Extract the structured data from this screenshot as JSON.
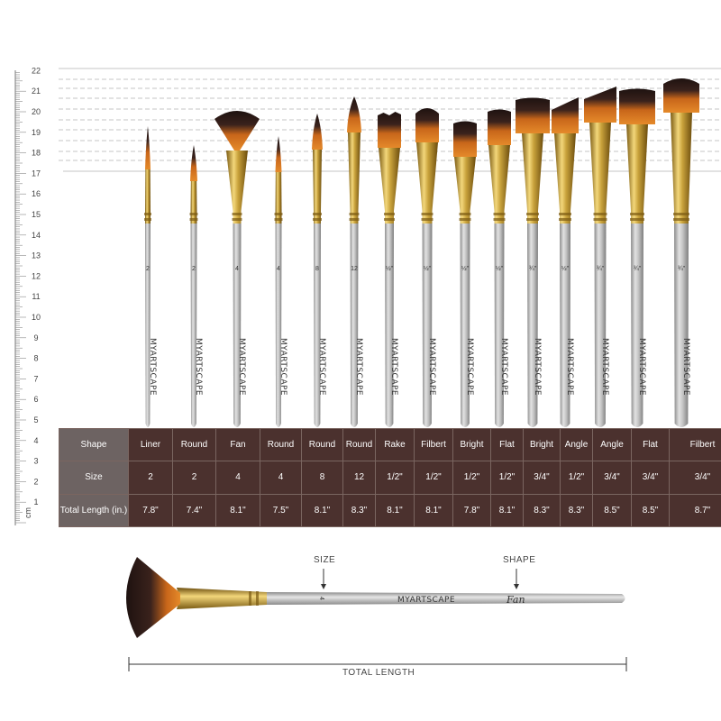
{
  "ruler": {
    "unit": "cm",
    "labels": [
      "1",
      "2",
      "3",
      "4",
      "5",
      "6",
      "7",
      "8",
      "9",
      "10",
      "11",
      "12",
      "13",
      "14",
      "15",
      "16",
      "17",
      "18",
      "19",
      "20",
      "21",
      "22"
    ]
  },
  "brushes": [
    {
      "shape": "Liner",
      "size": "2",
      "size_mark": "2",
      "length": "7.8\"",
      "head": "liner"
    },
    {
      "shape": "Round",
      "size": "2",
      "size_mark": "2",
      "length": "7.4\"",
      "head": "round"
    },
    {
      "shape": "Fan",
      "size": "4",
      "size_mark": "4",
      "length": "8.1\"",
      "head": "fan"
    },
    {
      "shape": "Round",
      "size": "4",
      "size_mark": "4",
      "length": "7.5\"",
      "head": "round"
    },
    {
      "shape": "Round",
      "size": "8",
      "size_mark": "8",
      "length": "8.1\"",
      "head": "round"
    },
    {
      "shape": "Round",
      "size": "12",
      "size_mark": "12",
      "length": "8.3\"",
      "head": "round"
    },
    {
      "shape": "Rake",
      "size": "1/2\"",
      "size_mark": "½\"",
      "length": "8.1\"",
      "head": "rake"
    },
    {
      "shape": "Filbert",
      "size": "1/2\"",
      "size_mark": "½\"",
      "length": "8.1\"",
      "head": "filbert"
    },
    {
      "shape": "Bright",
      "size": "1/2\"",
      "size_mark": "½\"",
      "length": "7.8\"",
      "head": "bright"
    },
    {
      "shape": "Flat",
      "size": "1/2\"",
      "size_mark": "½\"",
      "length": "8.1\"",
      "head": "flat"
    },
    {
      "shape": "Bright",
      "size": "3/4\"",
      "size_mark": "¾\"",
      "length": "8.3\"",
      "head": "bright"
    },
    {
      "shape": "Angle",
      "size": "1/2\"",
      "size_mark": "½\"",
      "length": "8.3\"",
      "head": "angle"
    },
    {
      "shape": "Angle",
      "size": "3/4\"",
      "size_mark": "¾\"",
      "length": "8.5\"",
      "head": "angle"
    },
    {
      "shape": "Flat",
      "size": "3/4\"",
      "size_mark": "¾\"",
      "length": "8.5\"",
      "head": "flat"
    },
    {
      "shape": "Filbert",
      "size": "3/4\"",
      "size_mark": "¾\"",
      "length": "8.7\"",
      "head": "filbert"
    }
  ],
  "brand": "MYARTSCAPE",
  "table": {
    "row_shape": "Shape",
    "row_size": "Size",
    "row_length": "Total Length (in.)"
  },
  "diagram": {
    "size_label": "SIZE",
    "shape_label": "SHAPE",
    "total_length_label": "TOTAL LENGTH",
    "size_mark": "4",
    "shape_script": "Fan",
    "brand": "MYARTSCAPE"
  },
  "colors": {
    "table_cell": "#4b312e",
    "table_header": "#6d6362",
    "handle": "#b9b9b9",
    "ferrule": "#c9a23c",
    "bristle_orange": "#d9761f",
    "bristle_dark": "#2a1a17"
  }
}
